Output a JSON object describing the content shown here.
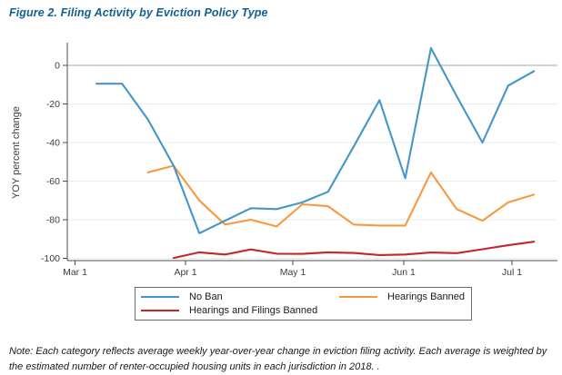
{
  "figure": {
    "title": "Figure 2. Filing Activity by Eviction Policy Type"
  },
  "note": "Note: Each category reflects average weekly year-over-year change in eviction filing activity. Each average is weighted by the estimated number of renter-occupied housing units in each jurisdiction in 2018. .",
  "colors": {
    "title_text": "#135e93",
    "no_ban": "#4596c8",
    "hearings_banned": "#f9993f",
    "hearings_filings_banned": "#c1272d",
    "grid_line": "#e3edf3",
    "zero_line": "#a8a8a8",
    "axis": "#4d4d4d"
  },
  "chart_data": {
    "type": "line",
    "title": "Figure 2. Filing Activity by Eviction Policy Type",
    "xlabel": "",
    "ylabel": "YOY percent change",
    "ylim": [
      -101,
      10.5
    ],
    "yticks": [
      0,
      -20,
      -40,
      -60,
      -80,
      -100
    ],
    "xticks": [
      "Mar 1",
      "Apr 1",
      "May 1",
      "Jun 1",
      "Jul 1"
    ],
    "grid": true,
    "legend_position": "bottom",
    "x": [
      "Mar 8",
      "Mar 15",
      "Mar 22",
      "Mar 29",
      "Apr 5",
      "Apr 12",
      "Apr 19",
      "Apr 26",
      "May 3",
      "May 10",
      "May 17",
      "May 24",
      "May 31",
      "Jun 7",
      "Jun 14",
      "Jun 21",
      "Jun 28",
      "Jul 5"
    ],
    "series": [
      {
        "name": "No Ban",
        "color": "#4596c8",
        "values": [
          -9.5,
          -9.5,
          -28,
          -52,
          -87,
          -80.5,
          -74,
          -74.5,
          -71,
          -65.5,
          -42,
          -18,
          -58.5,
          9,
          -16,
          -40,
          -10.5,
          -3
        ]
      },
      {
        "name": "Hearings Banned",
        "color": "#f9993f",
        "values": [
          null,
          null,
          -55.5,
          -52,
          -70,
          -82.5,
          -80,
          -83.5,
          -72,
          -73,
          -82.5,
          -83,
          -83,
          -55.5,
          -74.5,
          -80.5,
          -71,
          -67
        ]
      },
      {
        "name": "Hearings and Filings Banned",
        "color": "#c1272d",
        "values": [
          null,
          null,
          null,
          -99.8,
          -96.9,
          -98,
          -95.4,
          -97.6,
          -97.7,
          -96.9,
          -97.2,
          -98.3,
          -98,
          -97,
          -97.3,
          -95.3,
          -93.2,
          -91.4
        ]
      }
    ]
  }
}
